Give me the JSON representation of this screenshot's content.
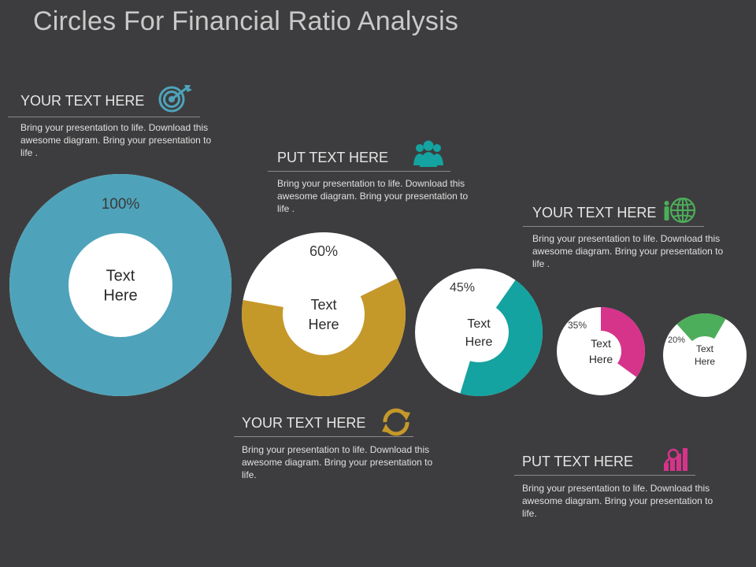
{
  "title": "Circles For Financial Ratio Analysis",
  "colors": {
    "background": "#3d3d3f",
    "teal_blue": "#4ea3ba",
    "gold": "#c5982a",
    "teal": "#14a3a0",
    "pink": "#d6338a",
    "green": "#4cae5a"
  },
  "blocks": [
    {
      "heading": "YOUR TEXT HERE",
      "text": "Bring your presentation to life. Download this awesome diagram. Bring your presentation to life .",
      "icon": "target-icon"
    },
    {
      "heading": "PUT TEXT HERE",
      "text": "Bring your presentation to life. Download this awesome diagram. Bring your presentation to life .",
      "icon": "people-icon"
    },
    {
      "heading": "YOUR TEXT HERE",
      "text": "Bring your presentation to life. Download this awesome diagram. Bring your presentation to life .",
      "icon": "globe-person-icon"
    },
    {
      "heading": "YOUR TEXT HERE",
      "text": "Bring your presentation to life. Download this awesome diagram. Bring your presentation to life.",
      "icon": "refresh-icon"
    },
    {
      "heading": "PUT TEXT HERE",
      "text": "Bring your presentation to life. Download this awesome diagram. Bring your presentation to life.",
      "icon": "chart-search-icon"
    }
  ],
  "circles": [
    {
      "percent_label": "100%",
      "value": 100,
      "center_text": [
        "Text",
        "Here"
      ],
      "color": "#4ea3ba"
    },
    {
      "percent_label": "60%",
      "value": 60,
      "center_text": [
        "Text",
        "Here"
      ],
      "color": "#c5982a"
    },
    {
      "percent_label": "45%",
      "value": 45,
      "center_text": [
        "Text",
        "Here"
      ],
      "color": "#14a3a0"
    },
    {
      "percent_label": "35%",
      "value": 35,
      "center_text": [
        "Text",
        "Here"
      ],
      "color": "#d6338a"
    },
    {
      "percent_label": "20%",
      "value": 20,
      "center_text": [
        "Text",
        "Here"
      ],
      "color": "#4cae5a"
    }
  ]
}
